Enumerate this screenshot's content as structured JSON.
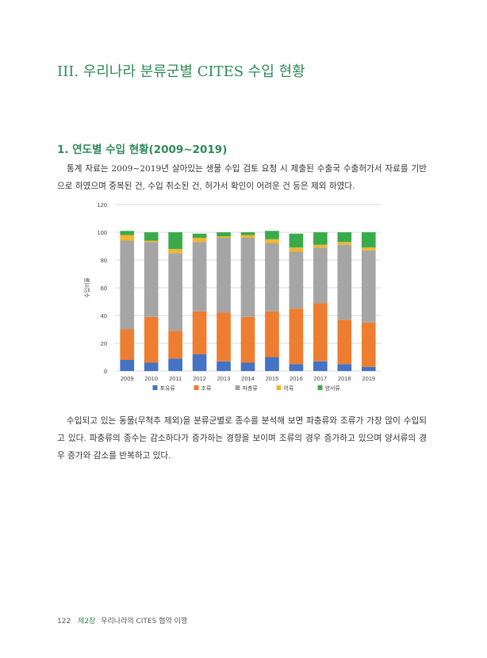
{
  "chapter_title": "III. 우리나라 분류군별 CITES 수입 현황",
  "section_title": "1. 연도별 수입 현황(2009~2019)",
  "paragraph1": "통계 자료는 2009~2019년 살아있는 생물 수입 검토 요청 시 제출된 수출국 수출허가서 자료를 기반으로 하였으며 중복된 건, 수입 취소된 건, 허가서 확인이 어려운 건 등은 제외 하였다.",
  "paragraph2": "수입되고 있는 동물(무척추 제외)을 분류군별로 종수를 분석해 보면 파충류와 조류가 가장 많이 수입되고 있다. 파충류의 종수는 감소하다가 증가하는 경향을 보이며 조류의 경우 증가하고 있으며 양서류의 경우 증가와 감소를 반복하고 있다.",
  "footer": {
    "page_number": "122",
    "chapter": "제2장",
    "chapter_title": "우리나라의 CITES 협약 이행"
  },
  "chart_data": {
    "type": "bar",
    "stacked": true,
    "categories": [
      "2009",
      "2010",
      "2011",
      "2012",
      "2013",
      "2014",
      "2015",
      "2016",
      "2017",
      "2018",
      "2019"
    ],
    "ylabel": "수입비율",
    "ylim": [
      0,
      120
    ],
    "yticks": [
      0,
      20,
      40,
      60,
      80,
      100,
      120
    ],
    "grid": true,
    "legend_position": "bottom",
    "series": [
      {
        "name": "포유류",
        "color": "#4472c4",
        "values": [
          8,
          6,
          9,
          12,
          7,
          6,
          10,
          5,
          7,
          5,
          3
        ]
      },
      {
        "name": "조류",
        "color": "#ed7d31",
        "values": [
          22,
          33,
          20,
          31,
          35,
          33,
          33,
          40,
          42,
          32,
          32
        ]
      },
      {
        "name": "파충류",
        "color": "#a5a5a5",
        "values": [
          64,
          54,
          56,
          50,
          54,
          57,
          49,
          41,
          40,
          54,
          52
        ]
      },
      {
        "name": "어류",
        "color": "#f2b630",
        "values": [
          4,
          1,
          3,
          3,
          1,
          2,
          3,
          3,
          2,
          2,
          2
        ]
      },
      {
        "name": "양서류",
        "color": "#3aab4a",
        "values": [
          3,
          6,
          12,
          3,
          3,
          2,
          6,
          10,
          9,
          7,
          11
        ]
      }
    ]
  }
}
